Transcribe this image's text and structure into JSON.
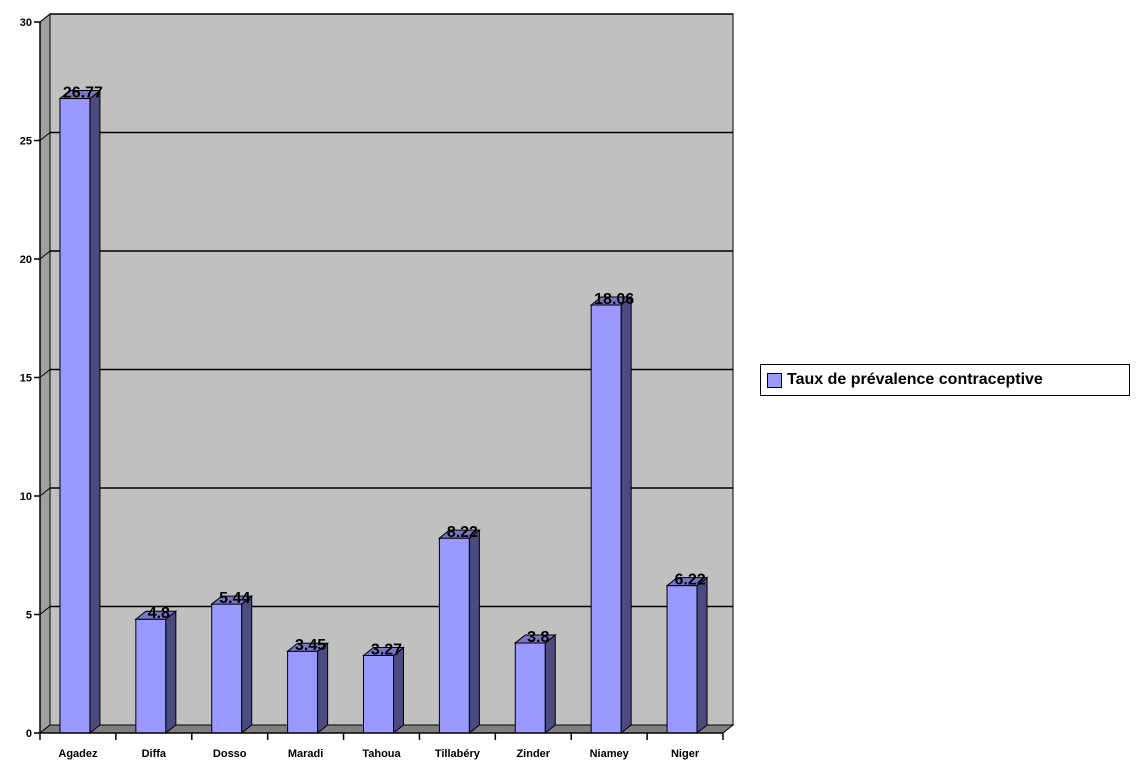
{
  "chart_data": {
    "type": "bar",
    "categories": [
      "Agadez",
      "Diffa",
      "Dosso",
      "Maradi",
      "Tahoua",
      "Tillabéry",
      "Zinder",
      "Niamey",
      "Niger"
    ],
    "series": [
      {
        "name": "Taux de prévalence contraceptive",
        "values": [
          26.77,
          4.8,
          5.44,
          3.45,
          3.27,
          8.22,
          3.8,
          18.06,
          6.22
        ],
        "labels": [
          "26.77",
          "4.8",
          "5.44",
          "3.45",
          "3.27",
          "8.22",
          "3.8",
          "18.06",
          "6.22"
        ]
      }
    ],
    "title": "",
    "xlabel": "",
    "ylabel": "",
    "ylim": [
      0,
      30
    ],
    "yticks": [
      "0",
      "5",
      "10",
      "15",
      "20",
      "25",
      "30"
    ],
    "grid": true,
    "legend_position": "right",
    "colors": {
      "bar_front": "#9999ff",
      "bar_side": "#4b4b7f",
      "bar_top": "#7777c6",
      "plot_background": "#c0c0c0",
      "floor": "#808080"
    }
  }
}
